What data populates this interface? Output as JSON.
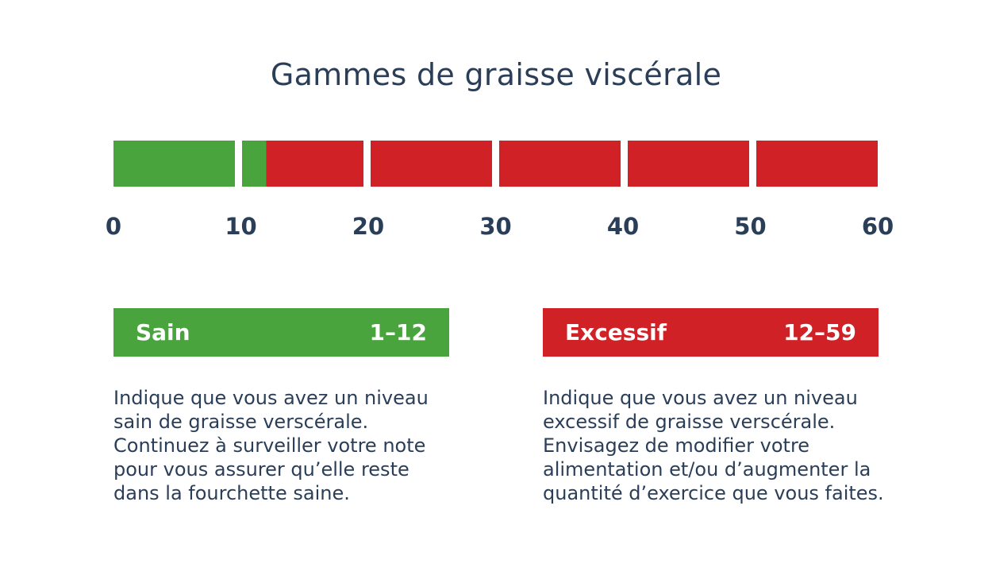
{
  "title": "Gammes de graisse viscérale",
  "chart_data": {
    "type": "bar",
    "subtype": "segmented-range-scale",
    "title": "Gammes de graisse viscérale",
    "axis": {
      "min": 0,
      "max": 60,
      "tick_step": 10,
      "ticks": [
        "0",
        "10",
        "20",
        "30",
        "40",
        "50",
        "60"
      ]
    },
    "segment_count": 6,
    "segment_span": 10,
    "ranges": [
      {
        "label": "Sain",
        "range": "1–12",
        "min": 1,
        "max": 12,
        "color": "#4aa43d",
        "description": "Indique que vous avez un niveau\nsain de graisse verscérale.\nContinuez à surveiller votre note\npour vous assurer qu’elle reste\ndans la fourchette saine."
      },
      {
        "label": "Excessif",
        "range": "12–59",
        "min": 12,
        "max": 59,
        "color": "#d02127",
        "description": "Indique que vous avez un niveau\nexcessif de graisse verscérale.\nEnvisagez de modifier votre\nalimentation et/ou d’augmenter la\nquantité d’exercice que vous faites."
      }
    ],
    "colors": {
      "healthy": "#4aa43d",
      "excessive": "#d02127",
      "text": "#2b3e58",
      "background": "#ffffff"
    },
    "legend_position": "below",
    "grid": false
  }
}
